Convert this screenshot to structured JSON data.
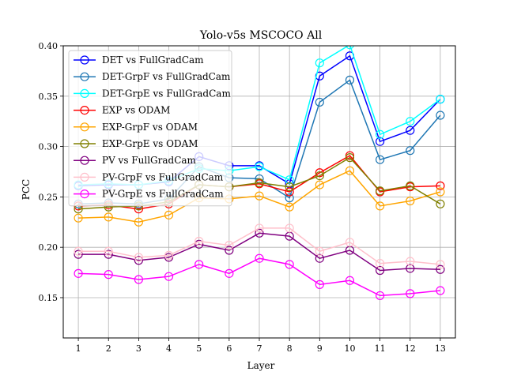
{
  "chart_data": {
    "type": "line",
    "title": "Yolo-v5s MSCOCO All",
    "xlabel": "Layer",
    "ylabel": "PCC",
    "x": [
      1,
      2,
      3,
      4,
      5,
      6,
      7,
      8,
      9,
      10,
      11,
      12,
      13
    ],
    "xlim": [
      0.5,
      13.5
    ],
    "ylim": [
      0.11,
      0.4
    ],
    "yticks": [
      0.15,
      0.2,
      0.25,
      0.3,
      0.35,
      0.4
    ],
    "ytick_labels": [
      "0.15",
      "0.20",
      "0.25",
      "0.30",
      "0.35",
      "0.40"
    ],
    "xtick_labels": [
      "1",
      "2",
      "3",
      "4",
      "5",
      "6",
      "7",
      "8",
      "9",
      "10",
      "11",
      "12",
      "13"
    ],
    "grid": true,
    "legend_position": "top-left",
    "series": [
      {
        "name": "DET vs FullGradCam",
        "color": "#0000ff",
        "values": [
          0.261,
          0.262,
          0.262,
          0.265,
          0.29,
          0.281,
          0.281,
          0.263,
          0.37,
          0.39,
          0.305,
          0.316,
          0.347
        ]
      },
      {
        "name": "DET-GrpF vs FullGradCam",
        "color": "#1f77b4",
        "values": [
          0.243,
          0.244,
          0.243,
          0.248,
          0.28,
          0.269,
          0.268,
          0.249,
          0.344,
          0.366,
          0.287,
          0.296,
          0.331
        ]
      },
      {
        "name": "DET-GrpE vs FullGradCam",
        "color": "#00ffff",
        "values": [
          0.262,
          0.263,
          0.262,
          0.266,
          0.278,
          0.276,
          0.28,
          0.267,
          0.383,
          0.401,
          0.312,
          0.325,
          0.347
        ]
      },
      {
        "name": "EXP vs ODAM",
        "color": "#ff0000",
        "values": [
          0.241,
          0.242,
          0.238,
          0.243,
          0.262,
          0.26,
          0.263,
          0.255,
          0.274,
          0.291,
          0.255,
          0.26,
          0.261
        ]
      },
      {
        "name": "EXP-GrpF vs ODAM",
        "color": "#ffa500",
        "values": [
          0.229,
          0.23,
          0.225,
          0.232,
          0.249,
          0.248,
          0.251,
          0.24,
          0.262,
          0.276,
          0.241,
          0.246,
          0.255
        ]
      },
      {
        "name": "EXP-GrpE vs ODAM",
        "color": "#808000",
        "values": [
          0.238,
          0.24,
          0.241,
          0.245,
          0.262,
          0.26,
          0.264,
          0.26,
          0.271,
          0.289,
          0.256,
          0.261,
          0.243
        ]
      },
      {
        "name": "PV vs FullGradCam",
        "color": "#800080",
        "values": [
          0.193,
          0.193,
          0.187,
          0.19,
          0.203,
          0.197,
          0.214,
          0.211,
          0.189,
          0.197,
          0.177,
          0.179,
          0.178
        ]
      },
      {
        "name": "PV-GrpF vs FullGradCam",
        "color": "#ffc0cb",
        "values": [
          0.196,
          0.196,
          0.19,
          0.192,
          0.206,
          0.202,
          0.219,
          0.219,
          0.196,
          0.205,
          0.184,
          0.186,
          0.183
        ]
      },
      {
        "name": "PV-GrpE vs FullGradCam",
        "color": "#ff00ff",
        "values": [
          0.174,
          0.173,
          0.168,
          0.171,
          0.183,
          0.174,
          0.189,
          0.183,
          0.163,
          0.167,
          0.152,
          0.154,
          0.157
        ]
      }
    ]
  }
}
